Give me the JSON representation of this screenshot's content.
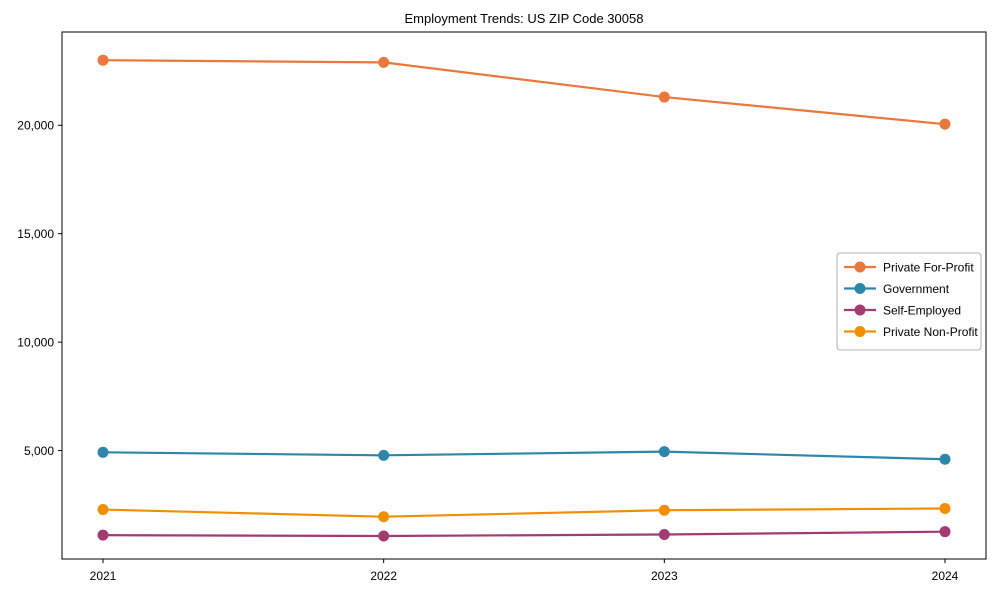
{
  "chart_data": {
    "type": "line",
    "title": "Employment Trends: US ZIP Code 30058",
    "xlabel": "",
    "ylabel": "",
    "x": [
      "2021",
      "2022",
      "2023",
      "2024"
    ],
    "series": [
      {
        "name": "Private For-Profit",
        "color": "#E8783C",
        "values": [
          23000,
          22900,
          21300,
          20050
        ]
      },
      {
        "name": "Government",
        "color": "#2E86AB",
        "values": [
          4920,
          4780,
          4950,
          4600
        ]
      },
      {
        "name": "Self-Employed",
        "color": "#A23B72",
        "values": [
          1100,
          1060,
          1130,
          1260
        ]
      },
      {
        "name": "Private Non-Profit",
        "color": "#F18F01",
        "values": [
          2280,
          1950,
          2250,
          2330
        ]
      }
    ],
    "ylim": [
      0,
      24300
    ],
    "yticks": [
      5000,
      10000,
      15000,
      20000
    ],
    "ytick_labels": [
      "5,000",
      "10,000",
      "15,000",
      "20,000"
    ],
    "grid": false,
    "legend_position": "right-middle",
    "legend_border_color": "#b0b0b0",
    "marker": "circle",
    "axis_color": "#000000",
    "background": "#ffffff"
  }
}
